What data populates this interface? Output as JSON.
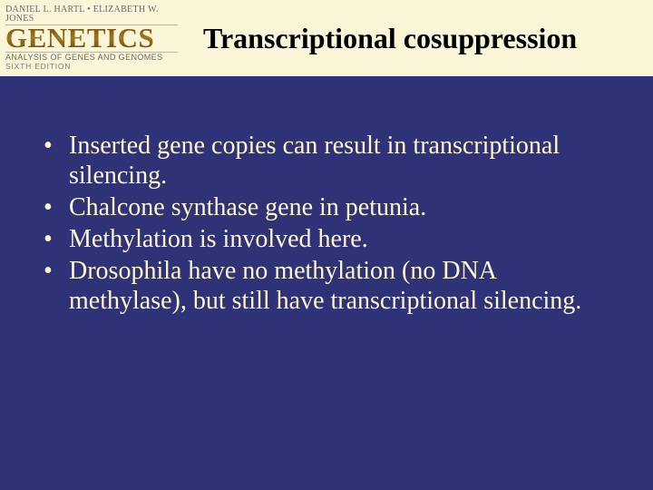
{
  "colors": {
    "background": "#2f3277",
    "header_band": "#fcf6d8",
    "body_text": "#fdf6cf",
    "title_text": "#000000"
  },
  "logo": {
    "authors": "DANIEL L. HARTL • ELIZABETH W. JONES",
    "title": "GENETICS",
    "subtitle": "ANALYSIS OF GENES AND GENOMES",
    "edition": "SIXTH EDITION"
  },
  "slide": {
    "title": "Transcriptional cosuppression",
    "bullets": [
      "Inserted gene copies can result in transcriptional silencing.",
      "Chalcone synthase gene in petunia.",
      "Methylation is involved here.",
      "Drosophila have no methylation (no DNA methylase), but still have transcriptional silencing."
    ]
  }
}
